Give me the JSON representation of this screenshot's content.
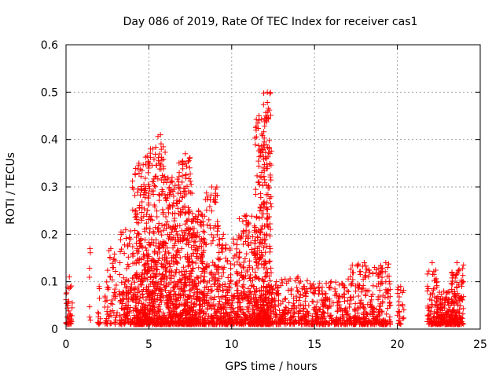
{
  "chart_data": {
    "type": "scatter",
    "title": "Day 086 of 2019, Rate Of TEC Index for receiver cas1",
    "xlabel": "GPS time / hours",
    "ylabel": "ROTI / TECUs",
    "xlim": [
      0,
      25
    ],
    "ylim": [
      0,
      0.6
    ],
    "xticks": [
      0,
      5,
      10,
      15,
      20,
      25
    ],
    "yticks": [
      0,
      0.1,
      0.2,
      0.3,
      0.4,
      0.5,
      0.6
    ],
    "xtick_labels": [
      "0",
      "5",
      "10",
      "15",
      "20",
      "25"
    ],
    "ytick_labels": [
      "0",
      "0.1",
      "0.2",
      "0.3",
      "0.4",
      "0.5",
      "0.6"
    ],
    "grid": true,
    "marker": "+",
    "color": "#ff0000",
    "series": [
      {
        "name": "ROTI",
        "clusters": [
          {
            "x": [
              0.0,
              0.4
            ],
            "y_max": 0.11,
            "n": 40
          },
          {
            "x": [
              1.4,
              1.5
            ],
            "y_max": 0.17,
            "n": 6
          },
          {
            "x": [
              1.9,
              2.1
            ],
            "y_max": 0.09,
            "n": 12
          },
          {
            "x": [
              2.3,
              3.1
            ],
            "y_max": 0.17,
            "n": 60
          },
          {
            "x": [
              3.2,
              4.0
            ],
            "y_max": 0.21,
            "n": 110
          },
          {
            "x": [
              4.0,
              4.8
            ],
            "y_max": 0.35,
            "n": 240
          },
          {
            "x": [
              4.8,
              5.4
            ],
            "y_max": 0.38,
            "n": 200
          },
          {
            "x": [
              5.4,
              6.0
            ],
            "y_max": 0.41,
            "n": 180
          },
          {
            "x": [
              6.0,
              6.8
            ],
            "y_max": 0.32,
            "n": 260
          },
          {
            "x": [
              6.8,
              7.6
            ],
            "y_max": 0.37,
            "n": 300
          },
          {
            "x": [
              7.6,
              8.4
            ],
            "y_max": 0.25,
            "n": 220
          },
          {
            "x": [
              8.4,
              9.2
            ],
            "y_max": 0.3,
            "n": 140
          },
          {
            "x": [
              9.2,
              9.8
            ],
            "y_max": 0.2,
            "n": 120
          },
          {
            "x": [
              9.8,
              10.4
            ],
            "y_max": 0.19,
            "n": 100
          },
          {
            "x": [
              10.4,
              11.4
            ],
            "y_max": 0.24,
            "n": 200
          },
          {
            "x": [
              11.4,
              11.9
            ],
            "y_max": 0.45,
            "n": 200
          },
          {
            "x": [
              11.9,
              12.4
            ],
            "y_max": 0.5,
            "n": 240
          },
          {
            "x": [
              12.4,
              13.0
            ],
            "y_max": 0.1,
            "n": 60
          },
          {
            "x": [
              13.0,
              15.0
            ],
            "y_max": 0.11,
            "n": 180
          },
          {
            "x": [
              15.0,
              17.0
            ],
            "y_max": 0.1,
            "n": 200
          },
          {
            "x": [
              17.0,
              19.0
            ],
            "y_max": 0.14,
            "n": 220
          },
          {
            "x": [
              19.0,
              19.6
            ],
            "y_max": 0.14,
            "n": 70
          },
          {
            "x": [
              20.0,
              20.4
            ],
            "y_max": 0.09,
            "n": 25
          },
          {
            "x": [
              21.8,
              22.4
            ],
            "y_max": 0.14,
            "n": 80
          },
          {
            "x": [
              22.4,
              23.2
            ],
            "y_max": 0.08,
            "n": 120
          },
          {
            "x": [
              23.2,
              24.0
            ],
            "y_max": 0.14,
            "n": 150
          }
        ]
      }
    ]
  }
}
